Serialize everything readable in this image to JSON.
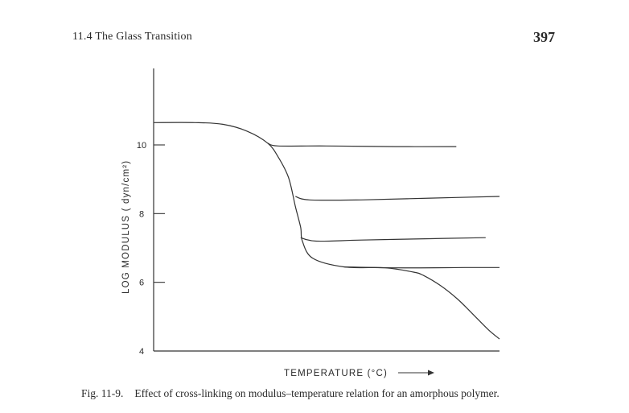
{
  "header": {
    "section": "11.4   The Glass Transition",
    "page_number": "397"
  },
  "caption": {
    "label": "Fig. 11-9.",
    "text": "Effect of cross-linking on modulus–temperature relation for an amorphous polymer."
  },
  "chart_data": {
    "type": "line",
    "xlabel": "TEMPERATURE (°C)",
    "ylabel": "LOG MODULUS ( dyn/cm²)",
    "ylim": [
      4,
      11.5
    ],
    "xlim": [
      0,
      100
    ],
    "yticks": [
      4,
      6,
      8,
      10
    ],
    "ytick_labels": [
      "4",
      "6",
      "8",
      "10"
    ],
    "grid": false,
    "series": [
      {
        "x": [
          0,
          12,
          20,
          27,
          33,
          36,
          39,
          41,
          42.5,
          43,
          46,
          55,
          67,
          75,
          78,
          83,
          88,
          93,
          97,
          100
        ],
        "y": [
          10.65,
          10.65,
          10.6,
          10.4,
          10.05,
          9.65,
          9.05,
          8.2,
          7.6,
          7.2,
          6.7,
          6.45,
          6.42,
          6.3,
          6.2,
          5.9,
          5.5,
          5.0,
          4.6,
          4.35
        ]
      },
      {
        "x": [
          33,
          36,
          50,
          70,
          87.5
        ],
        "y": [
          10.05,
          9.97,
          9.97,
          9.95,
          9.95
        ]
      },
      {
        "x": [
          41,
          45,
          60,
          80,
          100
        ],
        "y": [
          8.5,
          8.4,
          8.4,
          8.45,
          8.5
        ]
      },
      {
        "x": [
          42.5,
          47,
          60,
          80,
          96
        ],
        "y": [
          7.3,
          7.2,
          7.23,
          7.27,
          7.3
        ]
      },
      {
        "x": [
          55,
          70,
          90,
          100
        ],
        "y": [
          6.45,
          6.42,
          6.43,
          6.43
        ]
      },
      {
        "x": [
          0,
          100
        ],
        "y": [
          4,
          4
        ]
      }
    ]
  }
}
